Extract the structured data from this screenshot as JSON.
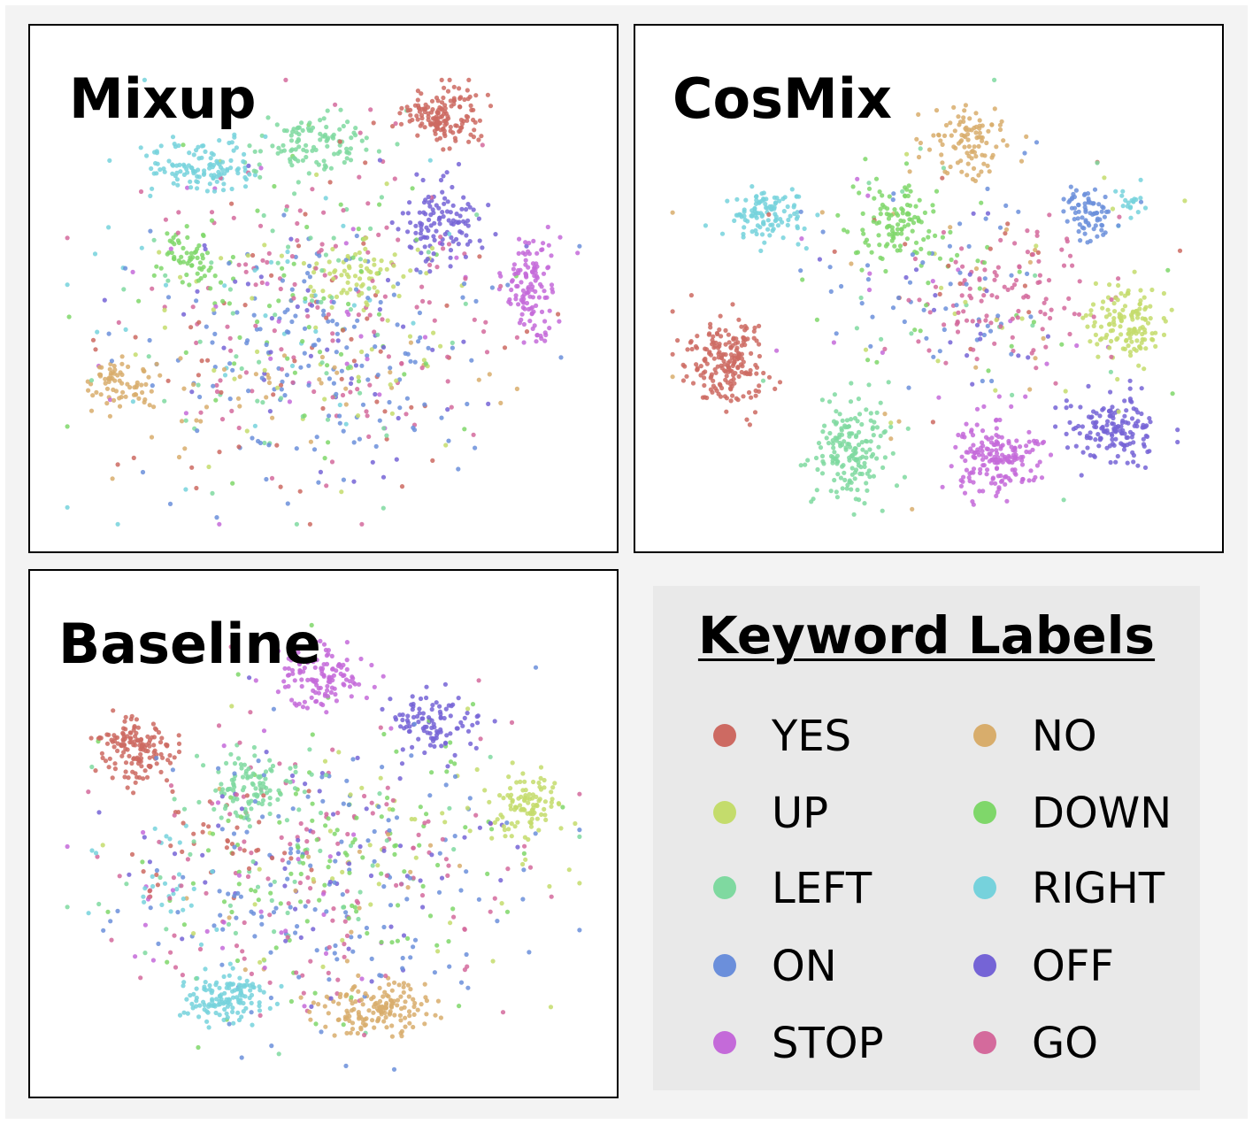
{
  "chart_data": [
    {
      "type": "scatter",
      "title": "Mixup",
      "xlabel": "",
      "ylabel": "",
      "note_clusters": "t-SNE embedding; classes largely intermixed, YES, STOP, OFF, RIGHT partially clustered",
      "series": [
        {
          "name": "YES",
          "clusters": [
            [
              0.72,
              0.12,
              0.06,
              0.05,
              150
            ],
            [
              0.5,
              0.6,
              0.35,
              0.28,
              60
            ]
          ]
        },
        {
          "name": "NO",
          "clusters": [
            [
              0.12,
              0.68,
              0.06,
              0.04,
              70
            ],
            [
              0.45,
              0.72,
              0.3,
              0.1,
              40
            ]
          ]
        },
        {
          "name": "UP",
          "clusters": [
            [
              0.56,
              0.45,
              0.08,
              0.05,
              70
            ],
            [
              0.5,
              0.55,
              0.3,
              0.25,
              50
            ]
          ]
        },
        {
          "name": "DOWN",
          "clusters": [
            [
              0.25,
              0.42,
              0.05,
              0.06,
              60
            ],
            [
              0.45,
              0.55,
              0.3,
              0.28,
              60
            ]
          ]
        },
        {
          "name": "LEFT",
          "clusters": [
            [
              0.48,
              0.18,
              0.1,
              0.06,
              110
            ],
            [
              0.45,
              0.55,
              0.3,
              0.28,
              60
            ]
          ]
        },
        {
          "name": "RIGHT",
          "clusters": [
            [
              0.27,
              0.22,
              0.09,
              0.05,
              120
            ],
            [
              0.4,
              0.5,
              0.3,
              0.28,
              40
            ]
          ]
        },
        {
          "name": "ON",
          "clusters": [
            [
              0.5,
              0.62,
              0.28,
              0.22,
              160
            ]
          ]
        },
        {
          "name": "OFF",
          "clusters": [
            [
              0.72,
              0.35,
              0.07,
              0.08,
              110
            ],
            [
              0.5,
              0.55,
              0.3,
              0.25,
              50
            ]
          ]
        },
        {
          "name": "STOP",
          "clusters": [
            [
              0.89,
              0.48,
              0.04,
              0.09,
              120
            ],
            [
              0.5,
              0.6,
              0.3,
              0.25,
              30
            ]
          ]
        },
        {
          "name": "GO",
          "clusters": [
            [
              0.5,
              0.5,
              0.3,
              0.27,
              140
            ]
          ]
        }
      ]
    },
    {
      "type": "scatter",
      "title": "CosMix",
      "xlabel": "",
      "ylabel": "",
      "series": [
        {
          "name": "YES",
          "clusters": [
            [
              0.12,
              0.64,
              0.06,
              0.08,
              200
            ],
            [
              0.6,
              0.45,
              0.3,
              0.25,
              20
            ]
          ]
        },
        {
          "name": "NO",
          "clusters": [
            [
              0.57,
              0.17,
              0.07,
              0.07,
              100
            ],
            [
              0.5,
              0.5,
              0.3,
              0.3,
              20
            ]
          ]
        },
        {
          "name": "UP",
          "clusters": [
            [
              0.87,
              0.56,
              0.06,
              0.06,
              130
            ],
            [
              0.6,
              0.5,
              0.3,
              0.25,
              20
            ]
          ]
        },
        {
          "name": "DOWN",
          "clusters": [
            [
              0.43,
              0.34,
              0.07,
              0.07,
              110
            ],
            [
              0.55,
              0.45,
              0.25,
              0.2,
              30
            ]
          ]
        },
        {
          "name": "LEFT",
          "clusters": [
            [
              0.35,
              0.83,
              0.06,
              0.09,
              170
            ],
            [
              0.5,
              0.5,
              0.3,
              0.25,
              20
            ]
          ]
        },
        {
          "name": "RIGHT",
          "clusters": [
            [
              0.2,
              0.32,
              0.06,
              0.05,
              110
            ],
            [
              0.88,
              0.3,
              0.03,
              0.03,
              20
            ]
          ]
        },
        {
          "name": "ON",
          "clusters": [
            [
              0.8,
              0.32,
              0.04,
              0.05,
              70
            ],
            [
              0.55,
              0.45,
              0.25,
              0.2,
              60
            ]
          ]
        },
        {
          "name": "OFF",
          "clusters": [
            [
              0.85,
              0.78,
              0.07,
              0.06,
              150
            ],
            [
              0.55,
              0.5,
              0.25,
              0.2,
              20
            ]
          ]
        },
        {
          "name": "STOP",
          "clusters": [
            [
              0.62,
              0.84,
              0.07,
              0.07,
              180
            ],
            [
              0.55,
              0.5,
              0.25,
              0.2,
              15
            ]
          ]
        },
        {
          "name": "GO",
          "clusters": [
            [
              0.65,
              0.5,
              0.15,
              0.12,
              110
            ]
          ]
        }
      ]
    },
    {
      "type": "scatter",
      "title": "Baseline",
      "xlabel": "",
      "ylabel": "",
      "series": [
        {
          "name": "YES",
          "clusters": [
            [
              0.15,
              0.3,
              0.06,
              0.06,
              150
            ],
            [
              0.3,
              0.5,
              0.15,
              0.1,
              40
            ]
          ]
        },
        {
          "name": "NO",
          "clusters": [
            [
              0.6,
              0.85,
              0.09,
              0.05,
              150
            ],
            [
              0.5,
              0.6,
              0.3,
              0.25,
              20
            ]
          ]
        },
        {
          "name": "UP",
          "clusters": [
            [
              0.88,
              0.42,
              0.05,
              0.06,
              100
            ],
            [
              0.6,
              0.5,
              0.3,
              0.25,
              50
            ]
          ]
        },
        {
          "name": "DOWN",
          "clusters": [
            [
              0.5,
              0.55,
              0.3,
              0.25,
              120
            ]
          ]
        },
        {
          "name": "LEFT",
          "clusters": [
            [
              0.36,
              0.38,
              0.07,
              0.06,
              100
            ],
            [
              0.45,
              0.55,
              0.3,
              0.25,
              50
            ]
          ]
        },
        {
          "name": "RIGHT",
          "clusters": [
            [
              0.32,
              0.83,
              0.07,
              0.05,
              130
            ],
            [
              0.2,
              0.6,
              0.12,
              0.1,
              30
            ]
          ]
        },
        {
          "name": "ON",
          "clusters": [
            [
              0.5,
              0.6,
              0.3,
              0.25,
              150
            ]
          ]
        },
        {
          "name": "OFF",
          "clusters": [
            [
              0.7,
              0.25,
              0.07,
              0.06,
              100
            ],
            [
              0.5,
              0.55,
              0.3,
              0.25,
              60
            ]
          ]
        },
        {
          "name": "STOP",
          "clusters": [
            [
              0.5,
              0.15,
              0.07,
              0.06,
              120
            ],
            [
              0.4,
              0.55,
              0.3,
              0.25,
              30
            ]
          ]
        },
        {
          "name": "GO",
          "clusters": [
            [
              0.5,
              0.55,
              0.3,
              0.28,
              140
            ]
          ]
        }
      ]
    }
  ],
  "panels": {
    "mixup": {
      "title": "Mixup"
    },
    "cosmix": {
      "title": "CosMix"
    },
    "baseline": {
      "title": "Baseline"
    }
  },
  "legend": {
    "title": "Keyword Labels",
    "items": [
      {
        "label": "YES",
        "color": "#cd6a62"
      },
      {
        "label": "NO",
        "color": "#d8ad6c"
      },
      {
        "label": "UP",
        "color": "#c4dc6c"
      },
      {
        "label": "DOWN",
        "color": "#7fd76a"
      },
      {
        "label": "LEFT",
        "color": "#7fd9a0"
      },
      {
        "label": "RIGHT",
        "color": "#76d2dc"
      },
      {
        "label": "ON",
        "color": "#6b8fdb"
      },
      {
        "label": "OFF",
        "color": "#7564d6"
      },
      {
        "label": "STOP",
        "color": "#c46ad9"
      },
      {
        "label": "GO",
        "color": "#d46a9c"
      }
    ]
  }
}
